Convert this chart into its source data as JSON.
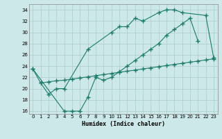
{
  "xlabel": "Humidex (Indice chaleur)",
  "bg_color": "#cce8e8",
  "grid_color": "#aacccc",
  "line_color": "#1a7a6a",
  "line1_x": [
    0,
    1,
    2,
    3,
    4,
    7,
    10,
    11,
    12,
    13,
    14,
    16,
    17,
    18,
    19,
    22,
    23
  ],
  "line1_y": [
    23.5,
    21.0,
    19.0,
    20.0,
    20.0,
    27.0,
    30.0,
    31.0,
    31.0,
    32.5,
    32.0,
    33.5,
    34.0,
    34.0,
    33.5,
    33.0,
    25.5
  ],
  "line2_x": [
    0,
    4,
    5,
    6,
    7,
    8,
    9,
    10,
    11,
    12,
    13,
    14,
    15,
    16,
    17,
    18,
    19,
    20,
    21
  ],
  "line2_y": [
    23.5,
    16.0,
    16.0,
    16.0,
    18.5,
    22.0,
    21.5,
    22.0,
    23.0,
    24.0,
    25.0,
    26.0,
    27.0,
    28.0,
    29.5,
    30.5,
    31.5,
    32.5,
    28.5
  ],
  "line3_x": [
    1,
    2,
    3,
    4,
    5,
    6,
    7,
    8,
    9,
    10,
    11,
    12,
    13,
    14,
    15,
    16,
    17,
    18,
    19,
    20,
    21,
    22,
    23
  ],
  "line3_y": [
    21.0,
    21.2,
    21.4,
    21.5,
    21.7,
    21.9,
    22.1,
    22.3,
    22.5,
    22.7,
    22.9,
    23.1,
    23.3,
    23.5,
    23.7,
    23.9,
    24.1,
    24.3,
    24.5,
    24.7,
    24.9,
    25.1,
    25.3
  ],
  "ylim": [
    15.5,
    35.0
  ],
  "xlim": [
    -0.5,
    23.5
  ],
  "yticks": [
    16,
    18,
    20,
    22,
    24,
    26,
    28,
    30,
    32,
    34
  ],
  "xticks": [
    0,
    1,
    2,
    3,
    4,
    5,
    6,
    7,
    8,
    9,
    10,
    11,
    12,
    13,
    14,
    15,
    16,
    17,
    18,
    19,
    20,
    21,
    22,
    23
  ]
}
